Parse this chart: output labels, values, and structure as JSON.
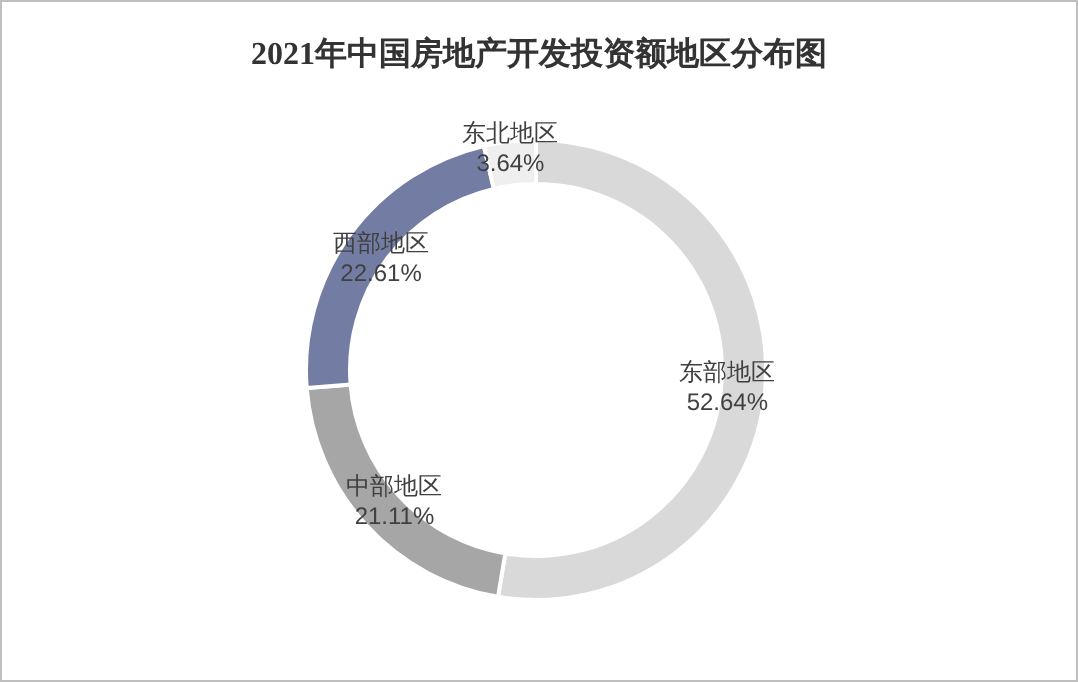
{
  "chart_data": {
    "type": "donut",
    "title": "2021年中国房地产开发投资额地区分布图",
    "categories": [
      "东部地区",
      "中部地区",
      "西部地区",
      "东北地区"
    ],
    "values": [
      52.64,
      21.11,
      22.61,
      3.64
    ],
    "colors": [
      "#d9d9d9",
      "#a6a6a6",
      "#737ca3",
      "#efefef"
    ],
    "value_labels": [
      "52.64%",
      "21.11%",
      "22.61%",
      "3.64%"
    ]
  }
}
